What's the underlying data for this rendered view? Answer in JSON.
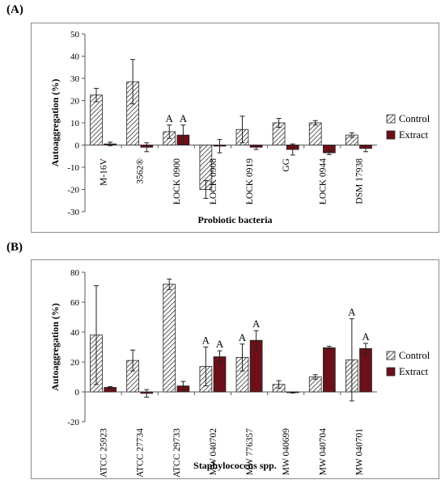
{
  "panels": [
    {
      "label": "(A)"
    },
    {
      "label": "(B)"
    }
  ],
  "colors": {
    "control_fill": "#ffffff",
    "control_hatch": "#333333",
    "extract_fill": "#6b1019",
    "axis": "#595959",
    "frame": "#8c8c8c"
  },
  "chart_data": [
    {
      "type": "bar",
      "ylabel": "Autoaggregation (%)",
      "xlabel": "Probiotic bacteria",
      "ylim": [
        -30,
        50
      ],
      "yticks": [
        -30,
        -20,
        -10,
        0,
        10,
        20,
        30,
        40,
        50
      ],
      "grid": false,
      "legend_position": "right",
      "categories": [
        "M-16V",
        "3562®",
        "ŁOCK 0900",
        "ŁOCK 0908",
        "ŁOCK 0919",
        "GG",
        "ŁOCK 0944",
        "DSM 17938"
      ],
      "series": [
        {
          "name": "Control",
          "values": [
            22.5,
            28.5,
            6.0,
            -20.0,
            7.0,
            10.0,
            10.0,
            4.5
          ],
          "errors": [
            3.0,
            10.0,
            3.0,
            4.0,
            6.0,
            2.0,
            1.0,
            1.0
          ],
          "annotations": [
            "",
            "",
            "A",
            "",
            "",
            "",
            "",
            ""
          ]
        },
        {
          "name": "Extract",
          "values": [
            0.5,
            -1.0,
            4.5,
            -0.5,
            -1.0,
            -2.0,
            -3.5,
            -1.5
          ],
          "errors": [
            0.8,
            2.0,
            4.5,
            3.0,
            1.0,
            2.5,
            0.8,
            1.5
          ],
          "annotations": [
            "",
            "",
            "A",
            "",
            "",
            "",
            "",
            ""
          ]
        }
      ]
    },
    {
      "type": "bar",
      "ylabel": "Autoaggregation (%)",
      "xlabel": "Staphylococcus spp.",
      "ylim": [
        -20,
        80
      ],
      "yticks": [
        -20,
        0,
        20,
        40,
        60,
        80
      ],
      "grid": false,
      "legend_position": "right",
      "categories": [
        "ATCC 25923",
        "ATCC 27734",
        "ATCC 29733",
        "MW 040702",
        "MW 776357",
        "MW 040699",
        "MW 040704",
        "MW 040701"
      ],
      "series": [
        {
          "name": "Control",
          "values": [
            38,
            21,
            72,
            17,
            23,
            5,
            10,
            21.5
          ],
          "errors": [
            33,
            7,
            3.5,
            13,
            9,
            2.5,
            1.5,
            27.5
          ],
          "annotations": [
            "",
            "",
            "",
            "A",
            "A",
            "",
            "",
            "A"
          ]
        },
        {
          "name": "Extract",
          "values": [
            3,
            -1,
            4,
            23.5,
            34.5,
            -0.5,
            29.5,
            29
          ],
          "errors": [
            0.5,
            2.5,
            3,
            4,
            6.5,
            0.3,
            1,
            3.5
          ],
          "annotations": [
            "",
            "",
            "",
            "A",
            "A",
            "",
            "",
            "A"
          ]
        }
      ]
    }
  ]
}
